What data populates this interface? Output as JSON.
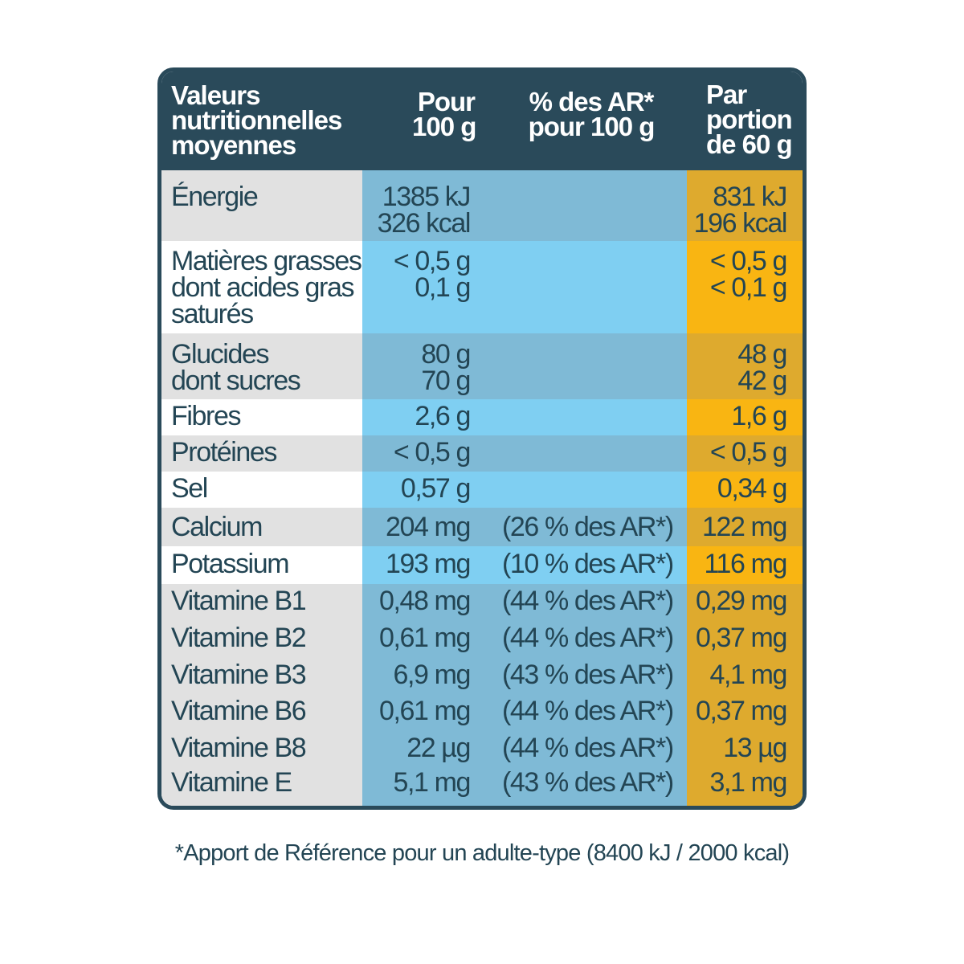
{
  "header": {
    "col_name": [
      "Valeurs",
      "nutritionnelles",
      "moyennes"
    ],
    "col_100g": [
      "Pour",
      "100 g"
    ],
    "col_ar": [
      "% des AR*",
      "pour 100 g"
    ],
    "col_portion": [
      "Par",
      "portion",
      "de 60 g"
    ]
  },
  "rows": [
    {
      "name": [
        "Énergie"
      ],
      "per100": [
        "1385 kJ",
        "326 kcal"
      ],
      "ar": "",
      "portion": [
        "831 kJ",
        "196 kcal"
      ]
    },
    {
      "name": [
        "Matières grasses",
        "dont acides gras",
        "saturés"
      ],
      "per100": [
        "< 0,5 g",
        "0,1 g"
      ],
      "ar": "",
      "portion": [
        "< 0,5 g",
        "< 0,1 g"
      ]
    },
    {
      "name": [
        "Glucides",
        "dont sucres"
      ],
      "per100": [
        "80 g",
        "70 g"
      ],
      "ar": "",
      "portion": [
        "48 g",
        "42 g"
      ]
    },
    {
      "name": [
        "Fibres"
      ],
      "per100": [
        "2,6 g"
      ],
      "ar": "",
      "portion": [
        "1,6 g"
      ]
    },
    {
      "name": [
        "Protéines"
      ],
      "per100": [
        "< 0,5 g"
      ],
      "ar": "",
      "portion": [
        "< 0,5 g"
      ]
    },
    {
      "name": [
        "Sel"
      ],
      "per100": [
        "0,57 g"
      ],
      "ar": "",
      "portion": [
        "0,34 g"
      ]
    },
    {
      "name": [
        "Calcium"
      ],
      "per100": [
        "204 mg"
      ],
      "ar": "(26 % des AR*)",
      "portion": [
        "122 mg"
      ]
    },
    {
      "name": [
        "Potassium"
      ],
      "per100": [
        "193 mg"
      ],
      "ar": "(10 % des AR*)",
      "portion": [
        "116 mg"
      ]
    },
    {
      "name": [
        "Vitamine B1"
      ],
      "per100": [
        "0,48 mg"
      ],
      "ar": "(44 % des AR*)",
      "portion": [
        "0,29 mg"
      ]
    },
    {
      "name": [
        "Vitamine B2"
      ],
      "per100": [
        "0,61 mg"
      ],
      "ar": "(44 % des AR*)",
      "portion": [
        "0,37 mg"
      ]
    },
    {
      "name": [
        "Vitamine B3"
      ],
      "per100": [
        "6,9 mg"
      ],
      "ar": "(43 % des AR*)",
      "portion": [
        "4,1 mg"
      ]
    },
    {
      "name": [
        "Vitamine B6"
      ],
      "per100": [
        "0,61 mg"
      ],
      "ar": "(44 % des AR*)",
      "portion": [
        "0,37 mg"
      ]
    },
    {
      "name": [
        "Vitamine B8"
      ],
      "per100": [
        "22 µg"
      ],
      "ar": "(44 % des AR*)",
      "portion": [
        "13 µg"
      ]
    },
    {
      "name": [
        "Vitamine E"
      ],
      "per100": [
        "5,1 mg"
      ],
      "ar": "(43 % des AR*)",
      "portion": [
        "3,1 mg"
      ]
    }
  ],
  "footnote": "*Apport de Référence pour un adulte-type (8400 kJ / 2000 kcal)",
  "colors": {
    "header": "#2a4a5a",
    "name_dark": "#e1e1e1",
    "name_light": "#ffffff",
    "blue_dark": "#7fbad6",
    "blue_light": "#7fcff2",
    "gold_dark": "#deaa2e",
    "gold_light": "#f9b512",
    "text": "#234554"
  }
}
